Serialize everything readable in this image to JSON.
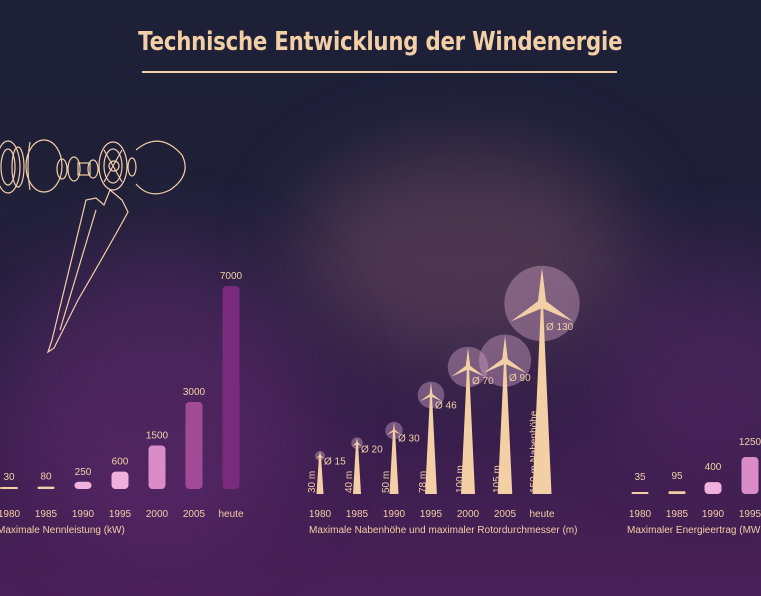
{
  "title": "Technische Entwicklung der Windenergie",
  "colors": {
    "cream": "#f3cfa6",
    "background": "#1f2038",
    "bar_light": "#f0b2dd",
    "bar_mid": "#d98cc7",
    "bar_purple": "#a14b97",
    "bar_dark": "#7a2a7c",
    "rotor_disk": "#c89cbf"
  },
  "illustration": "nacelle-drivetrain-drawing",
  "chart_data": [
    {
      "type": "bar",
      "xlabel": "Maximale Nennleistung (kW)",
      "categories": [
        "1980",
        "1985",
        "1990",
        "1995",
        "2000",
        "2005",
        "heute"
      ],
      "values": [
        30,
        80,
        250,
        600,
        1500,
        3000,
        7000
      ],
      "value_labels": [
        "30",
        "80",
        "250",
        "600",
        "1500",
        "3000",
        "7000"
      ],
      "ylim": [
        0,
        7000
      ]
    },
    {
      "type": "scatter",
      "xlabel": "Maximale Nabenhöhe und maximaler Rotordurchmesser (m)",
      "categories": [
        "1980",
        "1985",
        "1990",
        "1995",
        "2000",
        "2005",
        "heute"
      ],
      "hub_height_labels": [
        "30 m",
        "40 m",
        "50 m",
        "78 m",
        "100 m",
        "105 m",
        "150 m Nabenhöhe"
      ],
      "hub_height_m": [
        30,
        40,
        50,
        78,
        100,
        105,
        150
      ],
      "rotor_labels": [
        "Ø 15",
        "Ø 20",
        "Ø 30",
        "Ø 46",
        "Ø 70",
        "Ø 90",
        "Ø 130"
      ],
      "rotor_diameter_m": [
        15,
        20,
        30,
        46,
        70,
        90,
        130
      ]
    },
    {
      "type": "bar",
      "xlabel": "Maximaler Energieertrag (MWh/",
      "categories": [
        "1980",
        "1985",
        "1990",
        "1995"
      ],
      "values": [
        35,
        95,
        400,
        1250
      ],
      "value_labels": [
        "35",
        "95",
        "400",
        "1250"
      ]
    }
  ]
}
